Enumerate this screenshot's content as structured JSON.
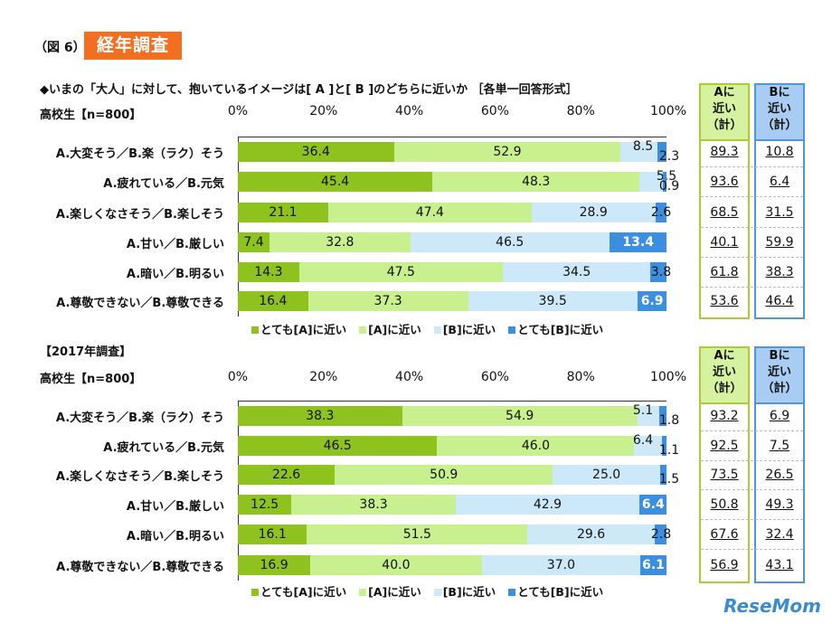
{
  "header": {
    "figure": "（図 6）",
    "badge": "経年調査",
    "question": "◆いまの「大人」に対して、抱いているイメージは[ A ]と[ B ]のどちらに近いか ［各単一回答形式］"
  },
  "colors": {
    "badge": "#f26f21",
    "very_a": "#8dc21f",
    "a": "#c9f08e",
    "b": "#cde8f8",
    "very_b": "#3c8fe0",
    "a_col_border": "#a6cf2f",
    "a_col_head": "#d6f2a0",
    "b_col_border": "#4d97dc",
    "b_col_head": "#a9cdf2"
  },
  "summary_headers": {
    "a": [
      "Aに",
      "近い",
      "（計）"
    ],
    "b": [
      "Bに",
      "近い",
      "（計）"
    ]
  },
  "chart_data": [
    {
      "type": "bar",
      "stacked": "horizontal-100%",
      "section": "",
      "group_label": "高校生【n=800】",
      "xlim": [
        0,
        100
      ],
      "x_ticks": [
        "0%",
        "20%",
        "40%",
        "60%",
        "80%",
        "100%"
      ],
      "categories": [
        "A.大変そう／B.楽（ラク）そう",
        "A.疲れている／B.元気",
        "A.楽しくなさそう／B.楽しそう",
        "A.甘い／B.厳しい",
        "A.暗い／B.明るい",
        "A.尊敬できない／B.尊敬できる"
      ],
      "series": [
        {
          "name": "とても[A]に近い",
          "values": [
            36.4,
            45.4,
            21.1,
            7.4,
            14.3,
            16.4
          ]
        },
        {
          "name": "[A]に近い",
          "values": [
            52.9,
            48.3,
            47.4,
            32.8,
            47.5,
            37.3
          ]
        },
        {
          "name": "[B]に近い",
          "values": [
            8.5,
            5.5,
            28.9,
            46.5,
            34.5,
            39.5
          ]
        },
        {
          "name": "とても[B]に近い",
          "values": [
            2.3,
            0.9,
            2.6,
            13.4,
            3.8,
            6.9
          ]
        }
      ],
      "a_total": [
        89.3,
        93.6,
        68.5,
        40.1,
        61.8,
        53.6
      ],
      "b_total": [
        10.8,
        6.4,
        31.5,
        59.9,
        38.3,
        46.4
      ],
      "legend_position": "bottom"
    },
    {
      "type": "bar",
      "stacked": "horizontal-100%",
      "section": "【2017年調査】",
      "group_label": "高校生【n=800】",
      "xlim": [
        0,
        100
      ],
      "x_ticks": [
        "0%",
        "20%",
        "40%",
        "60%",
        "80%",
        "100%"
      ],
      "categories": [
        "A.大変そう／B.楽（ラク）そう",
        "A.疲れている／B.元気",
        "A.楽しくなさそう／B.楽しそう",
        "A.甘い／B.厳しい",
        "A.暗い／B.明るい",
        "A.尊敬できない／B.尊敬できる"
      ],
      "series": [
        {
          "name": "とても[A]に近い",
          "values": [
            38.3,
            46.5,
            22.6,
            12.5,
            16.1,
            16.9
          ]
        },
        {
          "name": "[A]に近い",
          "values": [
            54.9,
            46.0,
            50.9,
            38.3,
            51.5,
            40.0
          ]
        },
        {
          "name": "[B]に近い",
          "values": [
            5.1,
            6.4,
            25.0,
            42.9,
            29.6,
            37.0
          ]
        },
        {
          "name": "とても[B]に近い",
          "values": [
            1.8,
            1.1,
            1.5,
            6.4,
            2.8,
            6.1
          ]
        }
      ],
      "a_total": [
        93.2,
        92.5,
        73.5,
        50.8,
        67.6,
        56.9
      ],
      "b_total": [
        6.9,
        7.5,
        26.5,
        49.3,
        32.4,
        43.1
      ],
      "legend_position": "bottom"
    }
  ],
  "watermark": "ReseMom"
}
